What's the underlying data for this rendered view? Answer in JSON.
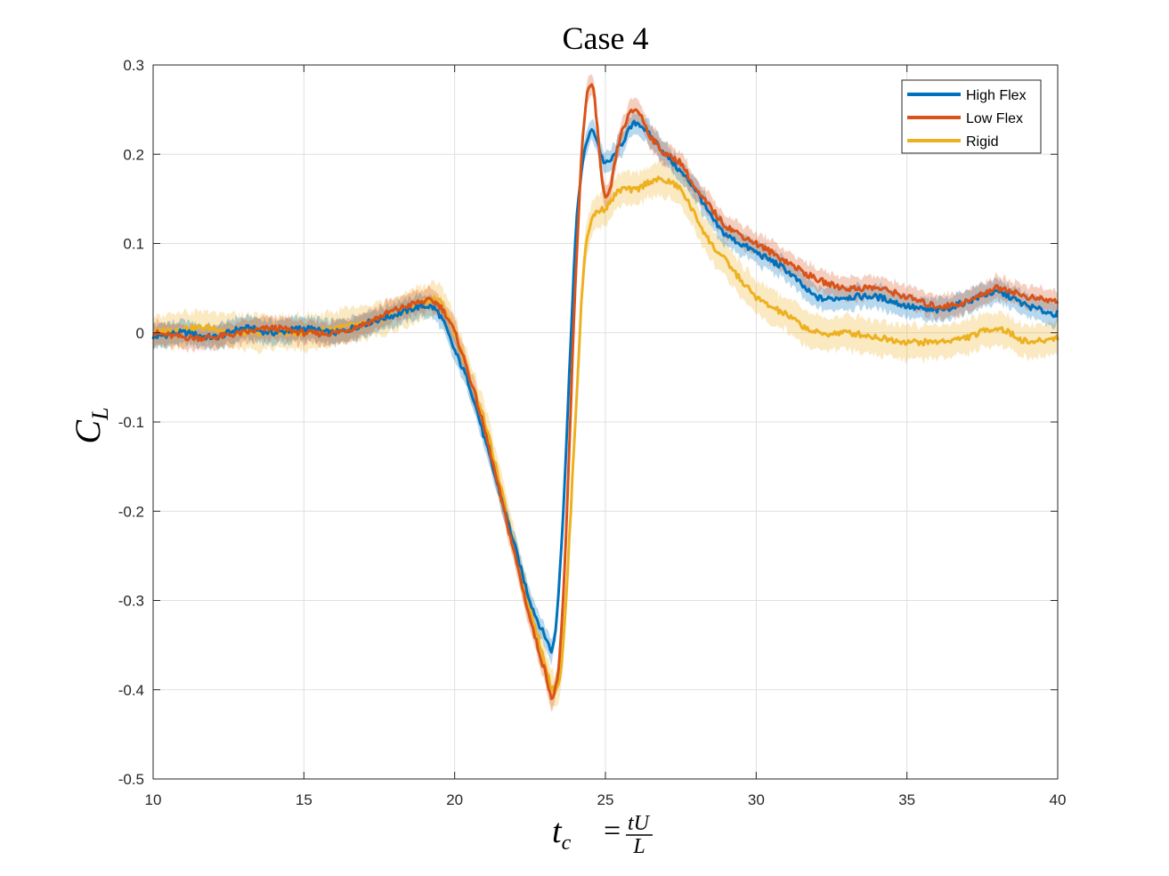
{
  "chart_data": {
    "type": "line",
    "title": "Case 4",
    "xlabel": {
      "main": "t",
      "sub": "c",
      "eq": "=",
      "num": "tU",
      "den": "L"
    },
    "ylabel": {
      "main": "C",
      "sub": "L"
    },
    "xlim": [
      10,
      40
    ],
    "ylim": [
      -0.5,
      0.3
    ],
    "xticks": [
      10,
      15,
      20,
      25,
      30,
      35,
      40
    ],
    "xtick_labels": [
      "10",
      "15",
      "20",
      "25",
      "30",
      "35",
      "40"
    ],
    "yticks": [
      -0.5,
      -0.4,
      -0.3,
      -0.2,
      -0.1,
      0,
      0.1,
      0.2,
      0.3
    ],
    "ytick_labels": [
      "-0.5",
      "-0.4",
      "-0.3",
      "-0.2",
      "-0.1",
      "0",
      "0.1",
      "0.2",
      "0.3"
    ],
    "grid": true,
    "legend_position": "top-right",
    "series": [
      {
        "name": "High Flex",
        "color": "#0072BD",
        "x": [
          10,
          11,
          12,
          13,
          14,
          15,
          16,
          17,
          18,
          19,
          19.5,
          20,
          20.5,
          21,
          21.5,
          22,
          22.5,
          23,
          23.3,
          23.6,
          24,
          24.3,
          24.6,
          25,
          25.5,
          26,
          26.5,
          27,
          27.5,
          28,
          28.5,
          29,
          30,
          31,
          32,
          33,
          34,
          35,
          36,
          37,
          38,
          39,
          40
        ],
        "y": [
          -0.005,
          0.0,
          -0.005,
          0.005,
          0.0,
          0.005,
          0.0,
          0.01,
          0.02,
          0.03,
          0.02,
          -0.02,
          -0.06,
          -0.12,
          -0.18,
          -0.24,
          -0.3,
          -0.34,
          -0.345,
          -0.2,
          0.1,
          0.2,
          0.225,
          0.19,
          0.21,
          0.235,
          0.22,
          0.2,
          0.18,
          0.16,
          0.13,
          0.11,
          0.09,
          0.07,
          0.04,
          0.04,
          0.04,
          0.03,
          0.025,
          0.035,
          0.045,
          0.03,
          0.02
        ],
        "band": 0.015
      },
      {
        "name": "Low Flex",
        "color": "#D95319",
        "x": [
          10,
          11,
          12,
          13,
          14,
          15,
          16,
          17,
          18,
          19,
          19.5,
          20,
          20.5,
          21,
          21.5,
          22,
          22.5,
          23,
          23.3,
          23.6,
          24,
          24.3,
          24.6,
          25,
          25.5,
          26,
          26.5,
          27,
          27.5,
          28,
          28.5,
          29,
          30,
          31,
          32,
          33,
          34,
          35,
          36,
          37,
          38,
          39,
          40
        ],
        "y": [
          0.0,
          -0.005,
          -0.005,
          0.0,
          0.005,
          0.0,
          0.0,
          0.01,
          0.025,
          0.035,
          0.03,
          0.0,
          -0.05,
          -0.11,
          -0.18,
          -0.25,
          -0.32,
          -0.38,
          -0.405,
          -0.3,
          0.05,
          0.24,
          0.27,
          0.15,
          0.22,
          0.25,
          0.22,
          0.2,
          0.19,
          0.16,
          0.14,
          0.12,
          0.1,
          0.08,
          0.06,
          0.05,
          0.05,
          0.04,
          0.03,
          0.035,
          0.05,
          0.04,
          0.035
        ],
        "band": 0.015
      },
      {
        "name": "Rigid",
        "color": "#EDB120",
        "x": [
          10,
          11,
          12,
          13,
          14,
          15,
          16,
          17,
          18,
          19,
          19.5,
          20,
          20.5,
          21,
          21.5,
          22,
          22.5,
          23,
          23.3,
          23.6,
          24,
          24.3,
          24.6,
          25,
          25.5,
          26,
          26.5,
          27,
          27.5,
          28,
          28.5,
          29,
          30,
          31,
          32,
          33,
          34,
          35,
          36,
          37,
          38,
          39,
          40
        ],
        "y": [
          0.0,
          0.005,
          0.005,
          0.0,
          0.0,
          0.0,
          0.005,
          0.01,
          0.02,
          0.035,
          0.035,
          0.0,
          -0.05,
          -0.1,
          -0.17,
          -0.24,
          -0.31,
          -0.37,
          -0.4,
          -0.35,
          -0.1,
          0.08,
          0.13,
          0.14,
          0.16,
          0.16,
          0.17,
          0.17,
          0.16,
          0.13,
          0.1,
          0.08,
          0.04,
          0.02,
          0.0,
          0.0,
          -0.005,
          -0.01,
          -0.01,
          -0.005,
          0.005,
          -0.01,
          -0.005
        ],
        "band": 0.022
      }
    ]
  }
}
